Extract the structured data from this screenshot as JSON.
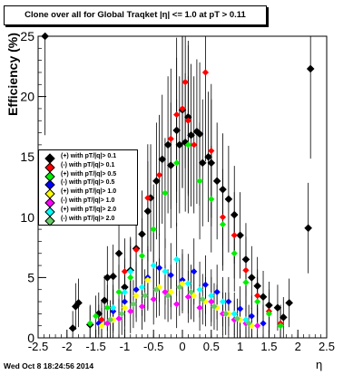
{
  "title": "Clone  over all for Global Traqket |η| <= 1.0 at pT > 0.11",
  "datestamp": "Wed Oct  8 18:24:56 2014",
  "chart_data": {
    "type": "scatter",
    "title": "Clone  over all for Global Traqket |η| <= 1.0 at pT > 0.11",
    "xlabel": "η",
    "ylabel": "Efficiency (%)",
    "xlim": [
      -2.5,
      2.5
    ],
    "ylim": [
      0,
      25
    ],
    "xticks": [
      "-2.5",
      "-2",
      "-1.5",
      "-1",
      "-0.5",
      "0",
      "0.5",
      "1",
      "1.5",
      "2",
      "2.5"
    ],
    "yticks": [
      "0",
      "5",
      "10",
      "15",
      "20",
      "25"
    ],
    "legend_position": "left-middle",
    "series": [
      {
        "name": "(+) with pT/|q|> 0.1",
        "color": "#000000",
        "points": [
          [
            -2.38,
            25
          ],
          [
            -1.9,
            0.8
          ],
          [
            -1.85,
            2.6
          ],
          [
            -1.8,
            2.9
          ],
          [
            -1.6,
            1.1
          ],
          [
            -1.45,
            2.0
          ],
          [
            -1.35,
            3.1
          ],
          [
            -1.3,
            5.0
          ],
          [
            -1.2,
            5.1
          ],
          [
            -1.1,
            7.0
          ],
          [
            -1.0,
            4.2
          ],
          [
            -0.9,
            5.6
          ],
          [
            -0.8,
            7.4
          ],
          [
            -0.7,
            8.6
          ],
          [
            -0.6,
            10.5
          ],
          [
            -0.55,
            11.6
          ],
          [
            -0.45,
            13.0
          ],
          [
            -0.35,
            14.8
          ],
          [
            -0.25,
            16.0
          ],
          [
            -0.2,
            14.3
          ],
          [
            -0.1,
            17.2
          ],
          [
            -0.05,
            16.0
          ],
          [
            0.0,
            18.9
          ],
          [
            0.05,
            16.2
          ],
          [
            0.1,
            18.3
          ],
          [
            0.15,
            16.8
          ],
          [
            0.25,
            17.1
          ],
          [
            0.3,
            16.9
          ],
          [
            0.35,
            14.5
          ],
          [
            0.45,
            15.0
          ],
          [
            0.5,
            14.5
          ],
          [
            0.6,
            13.0
          ],
          [
            0.7,
            12.3
          ],
          [
            0.8,
            11.5
          ],
          [
            0.9,
            10.2
          ],
          [
            1.0,
            8.5
          ],
          [
            1.1,
            6.5
          ],
          [
            1.2,
            5.0
          ],
          [
            1.3,
            4.3
          ],
          [
            1.4,
            3.4
          ],
          [
            1.5,
            2.7
          ],
          [
            1.65,
            2.5
          ],
          [
            1.75,
            1.7
          ],
          [
            1.85,
            2.9
          ],
          [
            2.18,
            9.1
          ],
          [
            2.22,
            22.3
          ]
        ]
      },
      {
        "name": "(-) with pT/|q|> 0.1",
        "color": "#ff0000",
        "points": [
          [
            -1.4,
            1.5
          ],
          [
            -1.0,
            5.5
          ],
          [
            -0.8,
            7.3
          ],
          [
            -0.6,
            11.6
          ],
          [
            -0.4,
            13.5
          ],
          [
            -0.2,
            16.5
          ],
          [
            -0.1,
            18.5
          ],
          [
            0.0,
            19.0
          ],
          [
            0.05,
            21.2
          ],
          [
            0.1,
            18.0
          ],
          [
            0.2,
            16.0
          ],
          [
            0.4,
            22.0
          ],
          [
            0.5,
            15.5
          ],
          [
            0.7,
            10.0
          ],
          [
            0.9,
            8.5
          ],
          [
            1.1,
            5.6
          ],
          [
            1.3,
            3.5
          ],
          [
            1.5,
            2.2
          ],
          [
            1.7,
            1.2
          ]
        ]
      },
      {
        "name": "(+) with pT/|q|> 0.5",
        "color": "#00ee00",
        "points": [
          [
            -1.6,
            1.2
          ],
          [
            -1.5,
            1.8
          ],
          [
            -1.3,
            2.5
          ],
          [
            -1.1,
            3.8
          ],
          [
            -0.9,
            5.0
          ],
          [
            -0.7,
            6.8
          ],
          [
            -0.5,
            9.0
          ],
          [
            -0.3,
            12.0
          ],
          [
            -0.1,
            14.5
          ],
          [
            0.1,
            16.0
          ],
          [
            0.3,
            13.0
          ],
          [
            0.5,
            11.5
          ],
          [
            0.7,
            9.4
          ],
          [
            0.9,
            7.0
          ],
          [
            1.1,
            4.6
          ],
          [
            1.3,
            3.0
          ],
          [
            1.5,
            2.0
          ],
          [
            1.7,
            1.0
          ]
        ]
      },
      {
        "name": "(-) with pT/|q|> 0.5",
        "color": "#0000ff",
        "points": [
          [
            -1.45,
            1.2
          ],
          [
            -1.2,
            2.2
          ],
          [
            -1.0,
            3.0
          ],
          [
            -0.8,
            4.0
          ],
          [
            -0.6,
            5.0
          ],
          [
            -0.4,
            5.8
          ],
          [
            -0.2,
            5.2
          ],
          [
            0.0,
            4.8
          ],
          [
            0.2,
            5.5
          ],
          [
            0.4,
            4.4
          ],
          [
            0.6,
            3.8
          ],
          [
            0.8,
            3.0
          ],
          [
            1.0,
            2.4
          ],
          [
            1.2,
            1.8
          ],
          [
            1.4,
            1.2
          ]
        ]
      },
      {
        "name": "(+) with pT/|q|> 1.0",
        "color": "#ffff00",
        "points": [
          [
            -1.4,
            1.0
          ],
          [
            -1.2,
            1.5
          ],
          [
            -1.0,
            2.5
          ],
          [
            -0.8,
            3.5
          ],
          [
            -0.6,
            4.8
          ],
          [
            -0.4,
            4.2
          ],
          [
            -0.2,
            3.8
          ],
          [
            0.0,
            4.5
          ],
          [
            0.2,
            3.5
          ],
          [
            0.4,
            3.0
          ],
          [
            0.6,
            2.5
          ],
          [
            0.8,
            2.0
          ],
          [
            1.0,
            1.5
          ],
          [
            1.2,
            1.0
          ]
        ]
      },
      {
        "name": "(-) with pT/|q|> 1.0",
        "color": "#ff00ff",
        "points": [
          [
            -1.3,
            1.2
          ],
          [
            -1.1,
            1.6
          ],
          [
            -0.9,
            2.2
          ],
          [
            -0.7,
            2.6
          ],
          [
            -0.5,
            3.2
          ],
          [
            -0.3,
            3.8
          ],
          [
            -0.1,
            2.8
          ],
          [
            0.1,
            3.4
          ],
          [
            0.3,
            2.5
          ],
          [
            0.5,
            3.0
          ],
          [
            0.7,
            2.0
          ],
          [
            0.9,
            1.5
          ],
          [
            1.1,
            1.2
          ],
          [
            1.3,
            1.0
          ]
        ]
      },
      {
        "name": "(+) with pT/|q|> 2.0",
        "color": "#00ffff",
        "points": [
          [
            -1.2,
            2.5
          ],
          [
            -1.0,
            3.8
          ],
          [
            -0.9,
            5.5
          ],
          [
            -0.7,
            4.2
          ],
          [
            -0.5,
            6.0
          ],
          [
            -0.3,
            5.5
          ],
          [
            -0.1,
            6.5
          ],
          [
            0.1,
            4.5
          ],
          [
            0.3,
            4.0
          ],
          [
            0.5,
            3.5
          ],
          [
            0.7,
            3.0
          ],
          [
            0.9,
            2.0
          ],
          [
            1.1,
            1.5
          ]
        ]
      },
      {
        "name": "(-) with pT/|q|> 2.0",
        "color": "#66cc66",
        "points": [
          [
            -1.25,
            1.5
          ],
          [
            -1.05,
            2.0
          ],
          [
            -0.85,
            2.8
          ],
          [
            -0.65,
            3.5
          ],
          [
            -0.45,
            4.0
          ],
          [
            -0.25,
            3.5
          ],
          [
            -0.05,
            4.2
          ],
          [
            0.15,
            3.8
          ],
          [
            0.35,
            3.2
          ],
          [
            0.55,
            2.6
          ],
          [
            0.75,
            2.0
          ],
          [
            0.95,
            1.6
          ],
          [
            1.15,
            1.2
          ]
        ]
      }
    ]
  }
}
